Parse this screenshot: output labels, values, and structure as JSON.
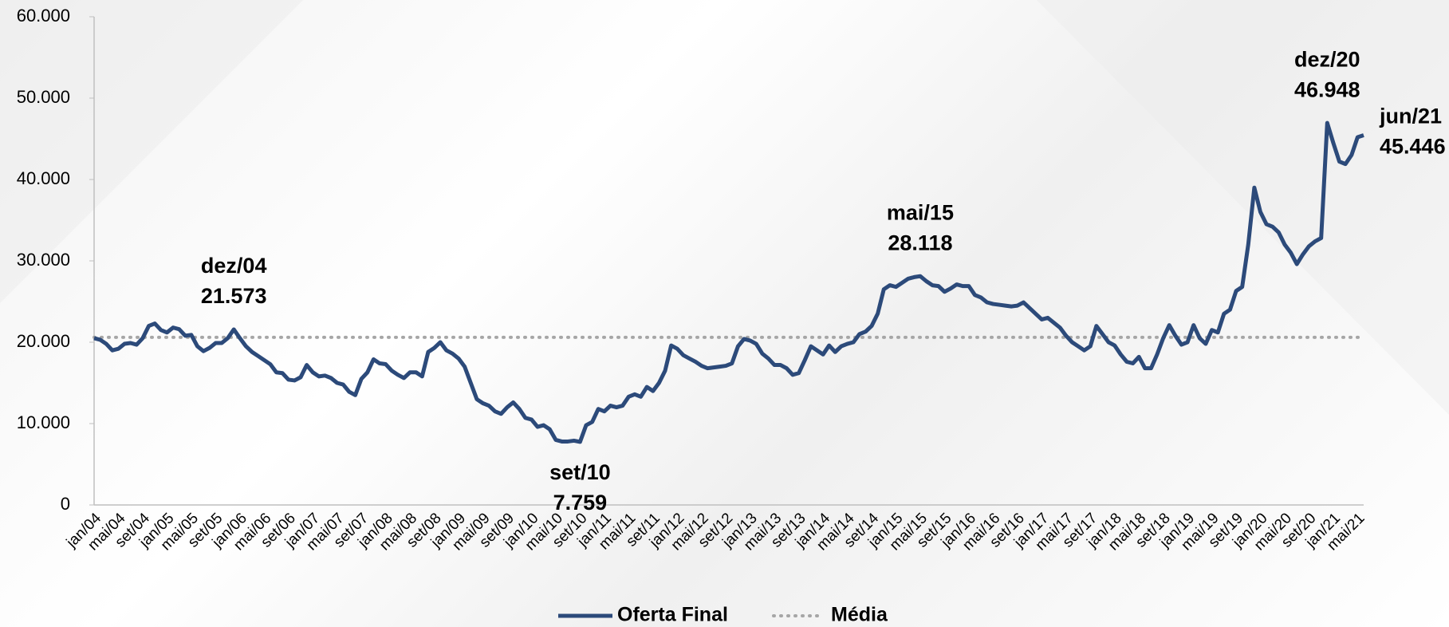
{
  "chart_data": {
    "type": "line",
    "categories": [
      "jan/04",
      null,
      null,
      null,
      "mai/04",
      null,
      null,
      null,
      "set/04",
      null,
      null,
      null,
      "jan/05",
      null,
      null,
      null,
      "mai/05",
      null,
      null,
      null,
      "set/05",
      null,
      null,
      null,
      "jan/06",
      null,
      null,
      null,
      "mai/06",
      null,
      null,
      null,
      "set/06",
      null,
      null,
      null,
      "jan/07",
      null,
      null,
      null,
      "mai/07",
      null,
      null,
      null,
      "set/07",
      null,
      null,
      null,
      "jan/08",
      null,
      null,
      null,
      "mai/08",
      null,
      null,
      null,
      "set/08",
      null,
      null,
      null,
      "jan/09",
      null,
      null,
      null,
      "mai/09",
      null,
      null,
      null,
      "set/09",
      null,
      null,
      null,
      "jan/10",
      null,
      null,
      null,
      "mai/10",
      null,
      null,
      null,
      "set/10",
      null,
      null,
      null,
      "jan/11",
      null,
      null,
      null,
      "mai/11",
      null,
      null,
      null,
      "set/11",
      null,
      null,
      null,
      "jan/12",
      null,
      null,
      null,
      "mai/12",
      null,
      null,
      null,
      "set/12",
      null,
      null,
      null,
      "jan/13",
      null,
      null,
      null,
      "mai/13",
      null,
      null,
      null,
      "set/13",
      null,
      null,
      null,
      "jan/14",
      null,
      null,
      null,
      "mai/14",
      null,
      null,
      null,
      "set/14",
      null,
      null,
      null,
      "jan/15",
      null,
      null,
      null,
      "mai/15",
      null,
      null,
      null,
      "set/15",
      null,
      null,
      null,
      "jan/16",
      null,
      null,
      null,
      "mai/16",
      null,
      null,
      null,
      "set/16",
      null,
      null,
      null,
      "jan/17",
      null,
      null,
      null,
      "mai/17",
      null,
      null,
      null,
      "set/17",
      null,
      null,
      null,
      "jan/18",
      null,
      null,
      null,
      "mai/18",
      null,
      null,
      null,
      "set/18",
      null,
      null,
      null,
      "jan/19",
      null,
      null,
      null,
      "mai/19",
      null,
      null,
      null,
      "set/19",
      null,
      null,
      null,
      "jan/20",
      null,
      null,
      null,
      "mai/20",
      null,
      null,
      null,
      "set/20",
      null,
      null,
      null,
      "jan/21",
      null,
      null,
      null,
      "mai/21",
      null
    ],
    "series": [
      {
        "name": "Oferta Final",
        "color": "#2c4a7a",
        "values": [
          20500,
          20300,
          19800,
          19000,
          19200,
          19800,
          19900,
          19700,
          20500,
          22000,
          22300,
          21500,
          21200,
          21800,
          21600,
          20800,
          20900,
          19500,
          18900,
          19300,
          19900,
          19900,
          20500,
          21573,
          20500,
          19500,
          18800,
          18300,
          17800,
          17300,
          16300,
          16200,
          15400,
          15300,
          15700,
          17200,
          16300,
          15800,
          15900,
          15600,
          15000,
          14800,
          13900,
          13500,
          15500,
          16300,
          17900,
          17400,
          17300,
          16500,
          16000,
          15600,
          16300,
          16300,
          15800,
          18800,
          19300,
          20000,
          19000,
          18600,
          18000,
          17000,
          15000,
          13000,
          12500,
          12200,
          11500,
          11200,
          12000,
          12600,
          11800,
          10700,
          10500,
          9600,
          9800,
          9300,
          8000,
          7800,
          7800,
          7900,
          7759,
          9800,
          10200,
          11800,
          11500,
          12200,
          12000,
          12200,
          13300,
          13600,
          13300,
          14500,
          14000,
          15000,
          16500,
          19600,
          19200,
          18400,
          18000,
          17600,
          17100,
          16800,
          16900,
          17000,
          17100,
          17400,
          19500,
          20400,
          20200,
          19800,
          18600,
          18000,
          17200,
          17200,
          16800,
          16000,
          16200,
          17800,
          19500,
          19000,
          18500,
          19600,
          18800,
          19500,
          19800,
          20000,
          21000,
          21300,
          22000,
          23500,
          26500,
          27000,
          26800,
          27300,
          27800,
          28000,
          28118,
          27500,
          27000,
          26900,
          26200,
          26600,
          27100,
          26900,
          26900,
          25800,
          25500,
          24900,
          24700,
          24600,
          24500,
          24400,
          24500,
          24900,
          24200,
          23500,
          22800,
          23000,
          22400,
          21800,
          20800,
          20000,
          19500,
          19000,
          19500,
          22000,
          21000,
          20000,
          19600,
          18500,
          17600,
          17400,
          18200,
          16800,
          16800,
          18500,
          20500,
          22100,
          20800,
          19700,
          20000,
          22100,
          20500,
          19800,
          21500,
          21200,
          23500,
          24000,
          26300,
          26800,
          32000,
          39000,
          36000,
          34500,
          34200,
          33500,
          32000,
          31000,
          29600,
          30800,
          31800,
          32400,
          32800,
          46948,
          44500,
          42200,
          41900,
          43000,
          45200,
          45446
        ]
      }
    ],
    "mean": {
      "name": "Média",
      "color": "#a6a6a6",
      "value": 20600
    },
    "annotations": [
      {
        "text": "dez/04",
        "value": 21573,
        "label": "21.573"
      },
      {
        "text": "set/10",
        "value": 7759,
        "label": "7.759"
      },
      {
        "text": "mai/15",
        "value": 28118,
        "label": "28.118"
      },
      {
        "text": "dez/20",
        "value": 46948,
        "label": "46.948"
      },
      {
        "text": "jun/21",
        "value": 45446,
        "label": "45.446"
      }
    ],
    "ylim": [
      0,
      60000
    ],
    "yticks": [
      0,
      {
        "value": 10000,
        "label": "10.000"
      },
      {
        "value": 20000,
        "label": "20.000"
      },
      {
        "value": 30000,
        "label": "30.000"
      },
      {
        "value": 40000,
        "label": "40.000"
      },
      {
        "value": 50000,
        "label": "50.000"
      },
      {
        "value": 60000,
        "label": "60.000"
      }
    ],
    "grid": false
  }
}
